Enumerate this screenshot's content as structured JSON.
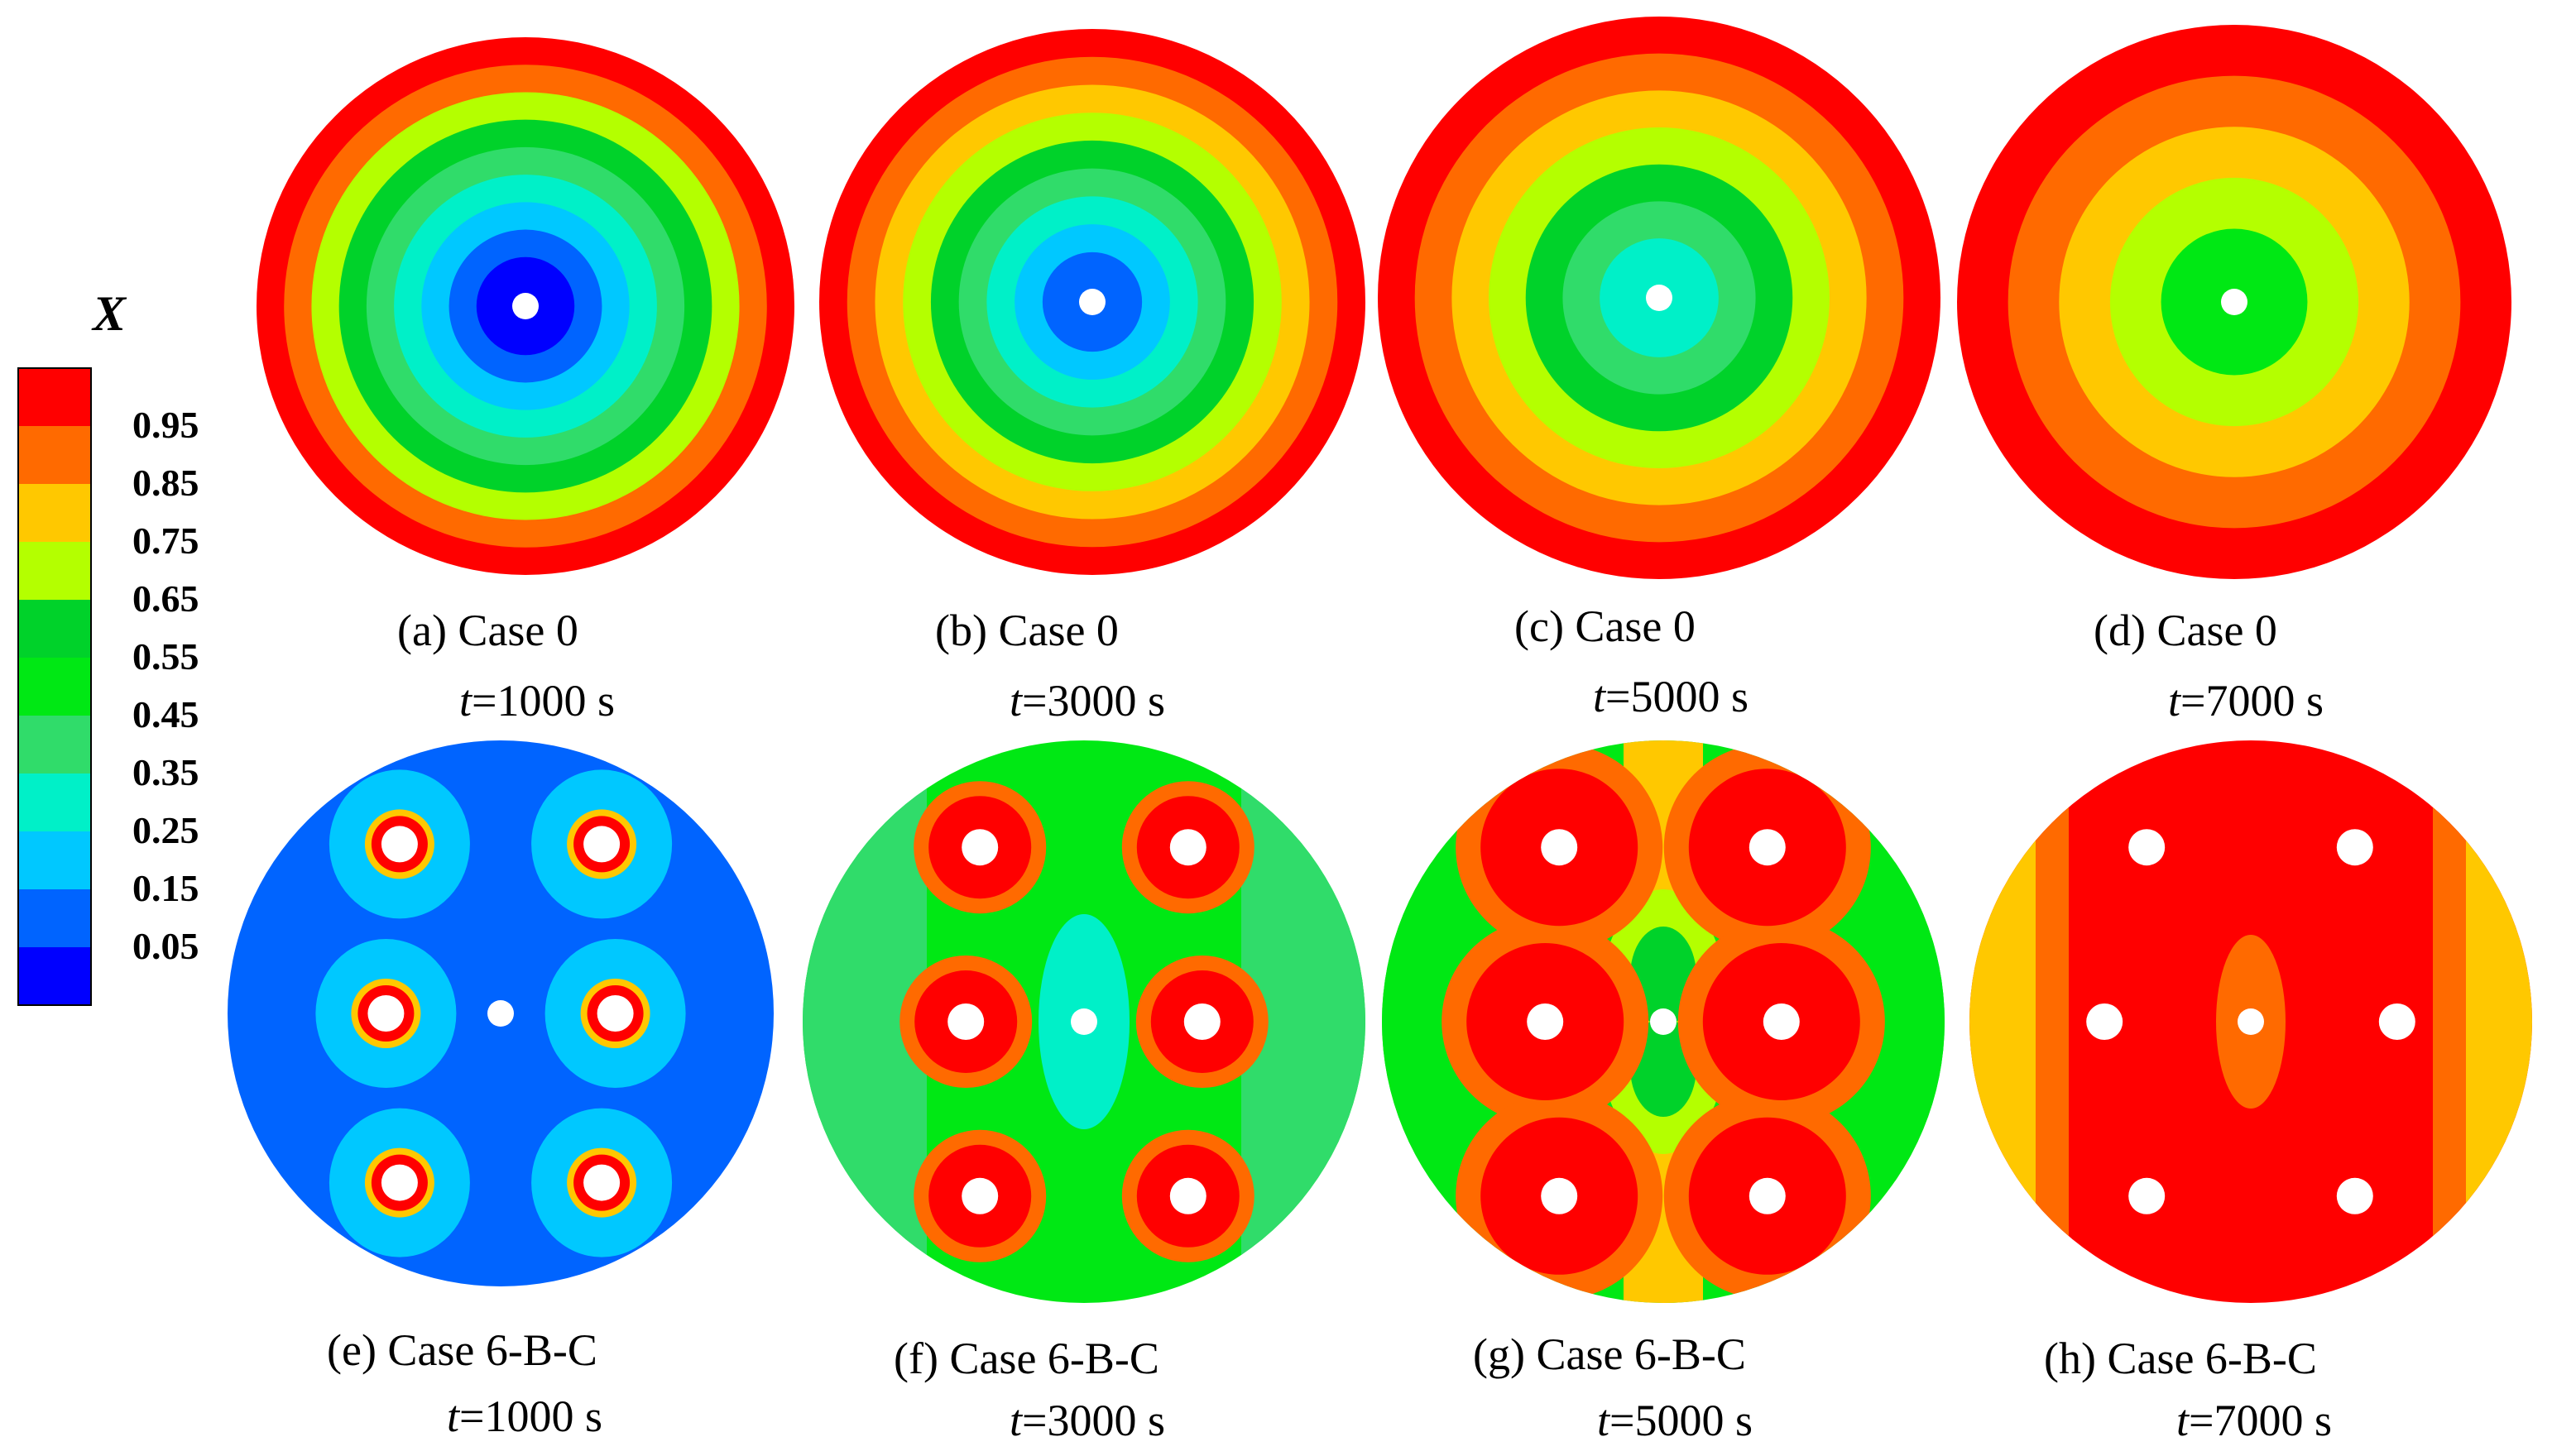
{
  "legend": {
    "title": "X",
    "labels": [
      "0.95",
      "0.85",
      "0.75",
      "0.65",
      "0.55",
      "0.45",
      "0.35",
      "0.25",
      "0.15",
      "0.05"
    ],
    "colors": [
      "#ff0000",
      "#ff6a00",
      "#ffc800",
      "#b4ff00",
      "#00d22a",
      "#00e814",
      "#30dc6a",
      "#00f0c8",
      "#00c8ff",
      "#0064ff",
      "#0000ff"
    ]
  },
  "panels": [
    {
      "label": "(a) Case 0",
      "time_prefix": "t",
      "time_value": "=1000 s",
      "rings": [
        "#ff0000",
        "#ff6a00",
        "#b4ff00",
        "#00d22a",
        "#30dc6a",
        "#00f0c8",
        "#00c8ff",
        "#0064ff",
        "#0000ff"
      ]
    },
    {
      "label": "(b) Case 0",
      "time_prefix": "t",
      "time_value": "=3000 s",
      "rings": [
        "#ff0000",
        "#ff6a00",
        "#ffc800",
        "#b4ff00",
        "#00d22a",
        "#30dc6a",
        "#00f0c8",
        "#00c8ff",
        "#0064ff"
      ]
    },
    {
      "label": "(c) Case 0",
      "time_prefix": "t",
      "time_value": "=5000 s",
      "rings": [
        "#ff0000",
        "#ff6a00",
        "#ffc800",
        "#b4ff00",
        "#00d22a",
        "#30dc6a",
        "#00f0c8"
      ]
    },
    {
      "label": "(d) Case 0",
      "time_prefix": "t",
      "time_value": "=7000 s",
      "rings": [
        "#ff0000",
        "#ff6a00",
        "#ffc800",
        "#b4ff00",
        "#00e814"
      ]
    },
    {
      "label": "(e) Case 6-B-C",
      "time_prefix": "t",
      "time_value": "=1000 s",
      "background": "#0064ff",
      "halo": "#00c8ff",
      "core": "#ff0000",
      "mid": "#ffc800"
    },
    {
      "label": "(f) Case 6-B-C",
      "time_prefix": "t",
      "time_value": "=3000 s",
      "background": "#00e814",
      "halo": "#ff6a00",
      "core": "#ff0000",
      "mid": "#00f0c8"
    },
    {
      "label": "(g) Case 6-B-C",
      "time_prefix": "t",
      "time_value": "=5000 s",
      "background": "#00e814",
      "halo": "#ff6a00",
      "core": "#ff0000",
      "mid": "#b4ff00"
    },
    {
      "label": "(h) Case 6-B-C",
      "time_prefix": "t",
      "time_value": "=7000 s",
      "background": "#ff0000",
      "halo": "#ff6a00",
      "core": "#ff0000",
      "mid": "#ff6a00"
    }
  ]
}
